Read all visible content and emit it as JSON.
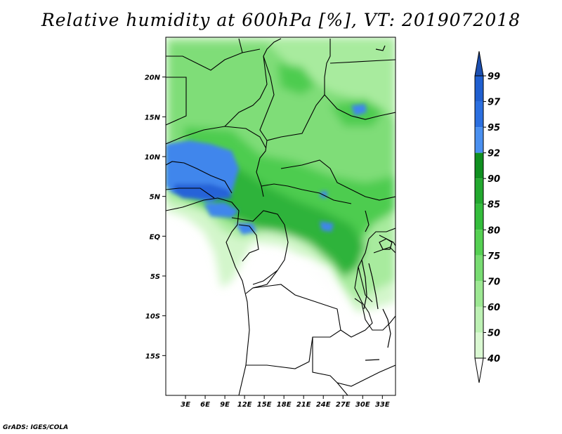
{
  "title": "Relative humidity at 600hPa [%], VT: 2019072018",
  "credit": "GrADS: IGES/COLA",
  "map": {
    "lon_range": [
      0,
      35
    ],
    "lat_range": [
      -20,
      25
    ],
    "lat_ticks": [
      {
        "value": 20,
        "label": "20N"
      },
      {
        "value": 15,
        "label": "15N"
      },
      {
        "value": 10,
        "label": "10N"
      },
      {
        "value": 5,
        "label": "5N"
      },
      {
        "value": 0,
        "label": "EQ"
      },
      {
        "value": -5,
        "label": "5S"
      },
      {
        "value": -10,
        "label": "10S"
      },
      {
        "value": -15,
        "label": "15S"
      }
    ],
    "lon_ticks": [
      {
        "value": 3,
        "label": "3E"
      },
      {
        "value": 6,
        "label": "6E"
      },
      {
        "value": 9,
        "label": "9E"
      },
      {
        "value": 12,
        "label": "12E"
      },
      {
        "value": 15,
        "label": "15E"
      },
      {
        "value": 18,
        "label": "18E"
      },
      {
        "value": 21,
        "label": "21E"
      },
      {
        "value": 24,
        "label": "24E"
      },
      {
        "value": 27,
        "label": "27E"
      },
      {
        "value": 30,
        "label": "30E"
      },
      {
        "value": 33,
        "label": "33E"
      }
    ]
  },
  "colorbar": {
    "levels": [
      {
        "label": "99",
        "color": "#1f5fd0"
      },
      {
        "label": "97",
        "color": "#2b6fe0"
      },
      {
        "label": "95",
        "color": "#4a90f0"
      },
      {
        "label": "92",
        "color": "#0f8f1f"
      },
      {
        "label": "90",
        "color": "#22a82e"
      },
      {
        "label": "85",
        "color": "#34bd3c"
      },
      {
        "label": "80",
        "color": "#55d052"
      },
      {
        "label": "75",
        "color": "#78dc72"
      },
      {
        "label": "70",
        "color": "#9de893"
      },
      {
        "label": "60",
        "color": "#bdf1b4"
      },
      {
        "label": "50",
        "color": "#daf8d2"
      },
      {
        "label": "40",
        "color": "#f0fcec"
      }
    ],
    "top_color": "#1c4fb0",
    "bottom_color": "#ffffff"
  }
}
